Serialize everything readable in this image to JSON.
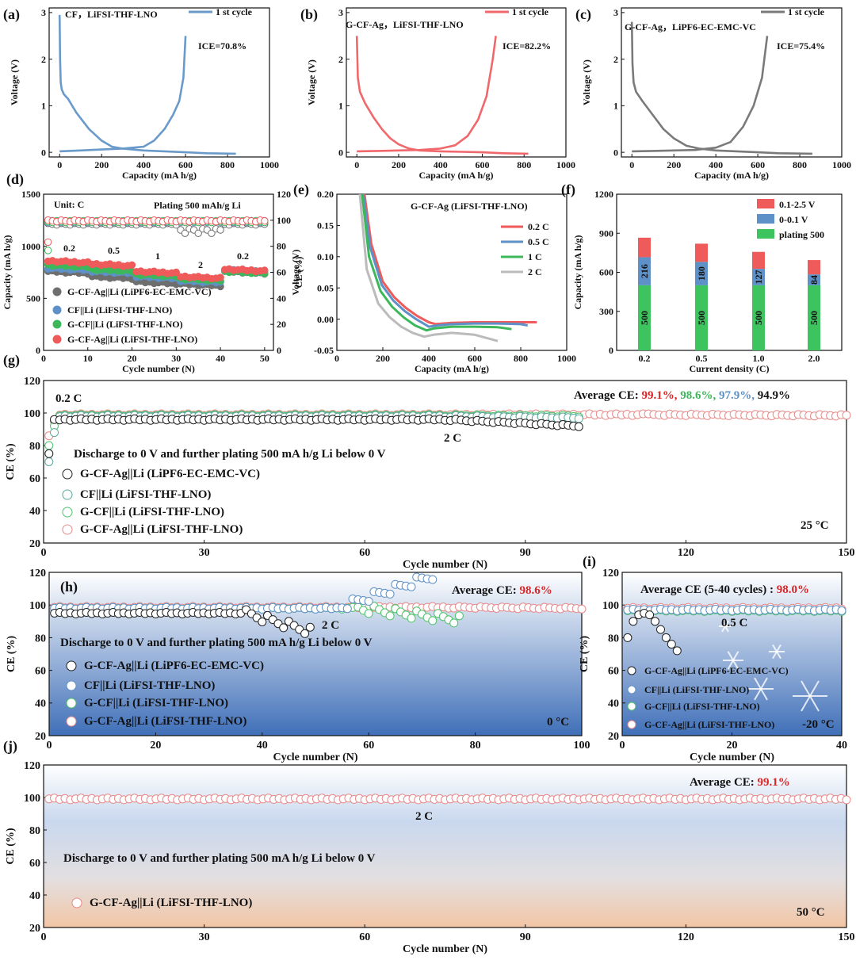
{
  "chart_data": [
    {
      "id": "a",
      "type": "line",
      "panel_label": "(a)",
      "title": "CF，LiFSI-THF-LNO",
      "legend": [
        "1 st cycle"
      ],
      "annotation": "ICE=70.8%",
      "xlabel": "Capacity (mA h/g)",
      "ylabel": "Voltage (V)",
      "xlim": [
        -50,
        1000
      ],
      "ylim": [
        -0.1,
        3.1
      ],
      "xticks": [
        "0",
        "200",
        "400",
        "600",
        "800",
        "1000"
      ],
      "yticks": [
        "0",
        "1",
        "2",
        "3"
      ],
      "series": [
        {
          "name": "discharge",
          "color": "#6a9ac9",
          "x": [
            0,
            2,
            5,
            10,
            20,
            40,
            80,
            140,
            200,
            250,
            300,
            400,
            500,
            600,
            700,
            840
          ],
          "y": [
            2.95,
            2.0,
            1.5,
            1.35,
            1.25,
            1.15,
            0.85,
            0.5,
            0.25,
            0.12,
            0.08,
            0.04,
            0.02,
            0.0,
            -0.02,
            -0.03
          ]
        },
        {
          "name": "charge",
          "color": "#6a9ac9",
          "x": [
            0,
            100,
            200,
            300,
            400,
            450,
            500,
            540,
            570,
            590,
            600
          ],
          "y": [
            0.02,
            0.04,
            0.06,
            0.08,
            0.12,
            0.25,
            0.5,
            0.8,
            1.1,
            1.6,
            2.5
          ]
        }
      ]
    },
    {
      "id": "b",
      "type": "line",
      "panel_label": "(b)",
      "title": "G-CF-Ag，LiFSI-THF-LNO",
      "legend": [
        "1 st cycle"
      ],
      "annotation": "ICE=82.2%",
      "xlabel": "Capacity (mA h/g)",
      "ylabel": "Voltage (V)",
      "xlim": [
        -50,
        1000
      ],
      "ylim": [
        -0.1,
        3.1
      ],
      "xticks": [
        "0",
        "200",
        "400",
        "600",
        "800",
        "1000"
      ],
      "yticks": [
        "0",
        "1",
        "2",
        "3"
      ],
      "series": [
        {
          "name": "discharge",
          "color": "#f0686b",
          "x": [
            0,
            5,
            15,
            40,
            80,
            120,
            160,
            200,
            250,
            300,
            400,
            500,
            600,
            700,
            820
          ],
          "y": [
            2.5,
            1.6,
            1.3,
            1.05,
            0.75,
            0.5,
            0.3,
            0.17,
            0.08,
            0.04,
            0.02,
            0.01,
            0.0,
            -0.02,
            -0.03
          ]
        },
        {
          "name": "charge",
          "color": "#f0686b",
          "x": [
            0,
            100,
            200,
            300,
            400,
            470,
            530,
            580,
            620,
            650,
            665
          ],
          "y": [
            0.02,
            0.03,
            0.04,
            0.05,
            0.08,
            0.15,
            0.35,
            0.7,
            1.2,
            2.0,
            2.5
          ]
        }
      ]
    },
    {
      "id": "c",
      "type": "line",
      "panel_label": "(c)",
      "title": "G-CF-Ag，LiPF6-EC-EMC-VC",
      "legend": [
        "1 st cycle"
      ],
      "annotation": "ICE=75.4%",
      "xlabel": "Capacity (mA h/g)",
      "ylabel": "Voltage (V)",
      "xlim": [
        -50,
        1000
      ],
      "ylim": [
        -0.1,
        3.1
      ],
      "xticks": [
        "0",
        "200",
        "400",
        "600",
        "800",
        "1000"
      ],
      "yticks": [
        "0",
        "1",
        "2",
        "3"
      ],
      "series": [
        {
          "name": "discharge",
          "color": "#7a7a7a",
          "x": [
            0,
            3,
            8,
            20,
            50,
            100,
            150,
            200,
            260,
            320,
            400,
            500,
            600,
            700,
            860
          ],
          "y": [
            2.8,
            1.9,
            1.5,
            1.3,
            1.1,
            0.8,
            0.5,
            0.3,
            0.14,
            0.08,
            0.04,
            0.02,
            0.0,
            -0.02,
            -0.03
          ]
        },
        {
          "name": "charge",
          "color": "#7a7a7a",
          "x": [
            0,
            100,
            200,
            300,
            400,
            470,
            530,
            580,
            620,
            645
          ],
          "y": [
            0.02,
            0.03,
            0.04,
            0.05,
            0.1,
            0.22,
            0.55,
            1.0,
            1.6,
            2.5
          ]
        }
      ]
    },
    {
      "id": "d",
      "type": "scatter",
      "panel_label": "(d)",
      "annotations": [
        "Unit: C",
        "Plating 500 mAh/g Li",
        "0.2",
        "0.5",
        "1",
        "2",
        "0.2"
      ],
      "xlabel": "Cycle number (N)",
      "ylabel": "Capacity (mA h/g)",
      "y2label": "CE (%)",
      "xlim": [
        0,
        52
      ],
      "ylim": [
        0,
        1500
      ],
      "y2lim": [
        0,
        120
      ],
      "xticks": [
        "0",
        "10",
        "20",
        "30",
        "40",
        "50"
      ],
      "yticks": [
        "0",
        "500",
        "1000",
        "1500"
      ],
      "y2ticks": [
        "0",
        "20",
        "40",
        "60",
        "80",
        "100",
        "120"
      ],
      "legend": [
        "G-CF-Ag||Li (LiPF6-EC-EMC-VC)",
        "CF||Li (LiFSI-THF-LNO)",
        "G-CF||Li (LiFSI-THF-LNO)",
        "G-CF-Ag||Li (LiFSI-THF-LNO)"
      ],
      "series": [
        {
          "name": "G-CF-Ag||Li (LiPF6-EC-EMC-VC)",
          "color": "#6e6e6e",
          "capacity_levels": [
            760,
            710,
            660,
            640,
            760
          ],
          "ce_level": 97
        },
        {
          "name": "CF||Li (LiFSI-THF-LNO)",
          "color": "#5e91c7",
          "capacity_levels": [
            790,
            760,
            710,
            670,
            770
          ],
          "ce_level": 99
        },
        {
          "name": "G-CF||Li (LiFSI-THF-LNO)",
          "color": "#3cb85a",
          "capacity_levels": [
            820,
            780,
            730,
            690,
            760
          ],
          "ce_level": 99
        },
        {
          "name": "G-CF-Ag||Li (LiFSI-THF-LNO)",
          "color": "#ef5a5a",
          "capacity_levels": [
            860,
            830,
            760,
            710,
            780
          ],
          "ce_level": 99.5
        }
      ]
    },
    {
      "id": "e",
      "type": "line",
      "panel_label": "(e)",
      "title": "G-CF-Ag (LiFSI-THF-LNO)",
      "xlabel": "Capacity (mA h/g)",
      "ylabel": "Voltage (V)",
      "xlim": [
        0,
        1000
      ],
      "ylim": [
        -0.05,
        0.2
      ],
      "xticks": [
        "0",
        "200",
        "400",
        "600",
        "800",
        "1000"
      ],
      "yticks": [
        "-0.05",
        "0.00",
        "0.05",
        "0.10",
        "0.15",
        "0.20"
      ],
      "series": [
        {
          "name": "0.2 C",
          "color": "#ef5a5a",
          "x": [
            120,
            150,
            200,
            250,
            300,
            350,
            400,
            430,
            500,
            600,
            700,
            800,
            870
          ],
          "y": [
            0.2,
            0.12,
            0.06,
            0.035,
            0.018,
            0.005,
            -0.005,
            -0.008,
            -0.006,
            -0.005,
            -0.005,
            -0.005,
            -0.005
          ]
        },
        {
          "name": "0.5 C",
          "color": "#5e91c7",
          "x": [
            115,
            145,
            195,
            245,
            295,
            345,
            400,
            440,
            500,
            600,
            700,
            800,
            830
          ],
          "y": [
            0.2,
            0.115,
            0.055,
            0.03,
            0.013,
            0.0,
            -0.012,
            -0.01,
            -0.008,
            -0.007,
            -0.007,
            -0.008,
            -0.01
          ]
        },
        {
          "name": "1 C",
          "color": "#3cb85a",
          "x": [
            110,
            140,
            190,
            240,
            290,
            340,
            390,
            420,
            500,
            600,
            700,
            760
          ],
          "y": [
            0.2,
            0.1,
            0.045,
            0.02,
            0.003,
            -0.01,
            -0.018,
            -0.015,
            -0.012,
            -0.012,
            -0.013,
            -0.016
          ]
        },
        {
          "name": "2 C",
          "color": "#bbbbbb",
          "x": [
            100,
            130,
            180,
            230,
            280,
            330,
            380,
            420,
            500,
            600,
            700
          ],
          "y": [
            0.2,
            0.08,
            0.025,
            0.003,
            -0.012,
            -0.022,
            -0.028,
            -0.025,
            -0.022,
            -0.025,
            -0.035
          ]
        }
      ]
    },
    {
      "id": "f",
      "type": "bar",
      "panel_label": "(f)",
      "xlabel": "Current density (C)",
      "ylabel": "Capacity (mA h/g)",
      "categories": [
        "0.2",
        "0.5",
        "1.0",
        "2.0"
      ],
      "ylim": [
        0,
        1200
      ],
      "yticks": [
        "0",
        "300",
        "600",
        "900",
        "1200"
      ],
      "stacked": true,
      "series": [
        {
          "name": "plating 500",
          "color": "#3ec45e",
          "values": [
            500,
            500,
            500,
            500
          ],
          "labels": [
            "500",
            "500",
            "500",
            "500"
          ]
        },
        {
          "name": "0-0.1 V",
          "color": "#5e91c7",
          "values": [
            216,
            180,
            127,
            84
          ],
          "labels": [
            "216",
            "180",
            "127",
            "84"
          ]
        },
        {
          "name": "0.1-2.5 V",
          "color": "#ef5a5a",
          "values": [
            150,
            140,
            130,
            110
          ]
        }
      ],
      "legend": [
        "0.1-2.5 V",
        "0-0.1 V",
        "plating 500"
      ]
    },
    {
      "id": "g",
      "type": "scatter",
      "panel_label": "(g)",
      "annotations": [
        "0.2 C",
        "2 C",
        "Discharge to 0 V and further plating 500 mA h/g Li below 0 V",
        "25 °C"
      ],
      "average_ce_label": "Average CE: ",
      "average_ce": [
        "99.1%,",
        "98.6%,",
        "97.9%,",
        "94.9%"
      ],
      "average_ce_colors": [
        "#d62728",
        "#3cb85a",
        "#5e91c7",
        "#111111"
      ],
      "xlabel": "Cycle number (N)",
      "ylabel": "CE (%)",
      "xlim": [
        0,
        150
      ],
      "ylim": [
        20,
        120
      ],
      "xticks": [
        "0",
        "30",
        "60",
        "90",
        "120",
        "150"
      ],
      "yticks": [
        "20",
        "40",
        "60",
        "80",
        "100",
        "120"
      ],
      "legend": [
        "G-CF-Ag||Li (LiPF6-EC-EMC-VC)",
        "CF||Li (LiFSI-THF-LNO)",
        "G-CF||Li (LiFSI-THF-LNO)",
        "G-CF-Ag||Li (LiFSI-THF-LNO)"
      ],
      "series": [
        {
          "name": "G-CF-Ag||Li (LiPF6-EC-EMC-VC)",
          "color": "#222222",
          "cycles": 100,
          "start": [
            75,
            96
          ],
          "level": 96,
          "tail": 92
        },
        {
          "name": "CF||Li (LiFSI-THF-LNO)",
          "color": "#5aa8a0",
          "cycles": 100,
          "start": [
            70,
            88
          ],
          "level": 98,
          "tail": 97
        },
        {
          "name": "G-CF||Li (LiFSI-THF-LNO)",
          "color": "#4cc46a",
          "cycles": 100,
          "start": [
            80,
            92
          ],
          "level": 98.5,
          "tail": 98
        },
        {
          "name": "G-CF-Ag||Li (LiFSI-THF-LNO)",
          "color": "#e88a8a",
          "cycles": 150,
          "start": [
            86,
            95
          ],
          "level": 99,
          "tail": 98.5
        }
      ]
    },
    {
      "id": "h",
      "type": "scatter",
      "panel_label": "(h)",
      "annotations": [
        "2 C",
        "Discharge to 0 V and further plating 500 mA h/g Li below 0 V",
        "0 °C"
      ],
      "average_ce_label": "Average CE: ",
      "average_ce": [
        "98.6%"
      ],
      "average_ce_colors": [
        "#d62728"
      ],
      "xlabel": "Cycle number (N)",
      "ylabel": "CE (%)",
      "xlim": [
        0,
        100
      ],
      "ylim": [
        20,
        120
      ],
      "xticks": [
        "0",
        "20",
        "40",
        "60",
        "80",
        "100"
      ],
      "yticks": [
        "20",
        "40",
        "60",
        "80",
        "100",
        "120"
      ],
      "legend": [
        "G-CF-Ag||Li (LiPF6-EC-EMC-VC)",
        "CF||Li (LiFSI-THF-LNO)",
        "G-CF||Li (LiFSI-THF-LNO)",
        "G-CF-Ag||Li (LiFSI-THF-LNO)"
      ],
      "series": [
        {
          "name": "G-CF-Ag||Li (LiPF6-EC-EMC-VC)",
          "color": "#222222",
          "cycles": 49,
          "level": 95,
          "tail": 84
        },
        {
          "name": "CF||Li (LiFSI-THF-LNO)",
          "color": "#5e91c7",
          "cycles": 72,
          "level": 98,
          "tail": 118
        },
        {
          "name": "G-CF||Li (LiFSI-THF-LNO)",
          "color": "#4cc46a",
          "cycles": 77,
          "level": 98,
          "tail": 91
        },
        {
          "name": "G-CF-Ag||Li (LiFSI-THF-LNO)",
          "color": "#e88a8a",
          "cycles": 100,
          "level": 98.6,
          "tail": 98
        }
      ]
    },
    {
      "id": "i",
      "type": "scatter",
      "panel_label": "(i)",
      "annotations": [
        "0.5 C",
        "-20 °C"
      ],
      "average_ce_label": "Average CE (5-40 cycles) : ",
      "average_ce": [
        "98.0%"
      ],
      "average_ce_colors": [
        "#d62728"
      ],
      "xlabel": "Cycle number (N)",
      "ylabel": "CE (%)",
      "xlim": [
        0,
        40
      ],
      "ylim": [
        20,
        120
      ],
      "xticks": [
        "0",
        "20",
        "40"
      ],
      "yticks": [
        "20",
        "40",
        "60",
        "80",
        "100",
        "120"
      ],
      "legend": [
        "G-CF-Ag||Li (LiPF6-EC-EMC-VC)",
        "CF||Li (LiFSI-THF-LNO)",
        "G-CF||Li (LiFSI-THF-LNO)",
        "G-CF-Ag||Li (LiFSI-THF-LNO)"
      ],
      "series": [
        {
          "name": "G-CF-Ag||Li (LiPF6-EC-EMC-VC)",
          "color": "#222222",
          "x": [
            1,
            2,
            3,
            4,
            5,
            6,
            7,
            8,
            9,
            10
          ],
          "y": [
            80,
            90,
            94,
            95,
            94,
            90,
            85,
            80,
            76,
            72
          ]
        },
        {
          "name": "CF||Li (LiFSI-THF-LNO)",
          "color": "#5e91c7",
          "cycles": 40,
          "level": 97
        },
        {
          "name": "G-CF||Li (LiFSI-THF-LNO)",
          "color": "#4cc46a",
          "cycles": 40,
          "level": 96.5
        },
        {
          "name": "G-CF-Ag||Li (LiFSI-THF-LNO)",
          "color": "#e88a8a",
          "cycles": 40,
          "level": 98
        }
      ]
    },
    {
      "id": "j",
      "type": "scatter",
      "panel_label": "(j)",
      "annotations": [
        "2 C",
        "Discharge to 0 V and further plating 500 mA h/g Li below 0 V",
        "50 °C"
      ],
      "average_ce_label": "Average CE: ",
      "average_ce": [
        "99.1%"
      ],
      "average_ce_colors": [
        "#d62728"
      ],
      "xlabel": "Cycle number (N)",
      "ylabel": "CE (%)",
      "xlim": [
        0,
        150
      ],
      "ylim": [
        20,
        120
      ],
      "xticks": [
        "0",
        "30",
        "60",
        "90",
        "120",
        "150"
      ],
      "yticks": [
        "20",
        "40",
        "60",
        "80",
        "100",
        "120"
      ],
      "legend": [
        "G-CF-Ag||Li (LiFSI-THF-LNO)"
      ],
      "series": [
        {
          "name": "G-CF-Ag||Li (LiFSI-THF-LNO)",
          "color": "#e88a8a",
          "cycles": 150,
          "level": 99.1
        }
      ]
    }
  ]
}
